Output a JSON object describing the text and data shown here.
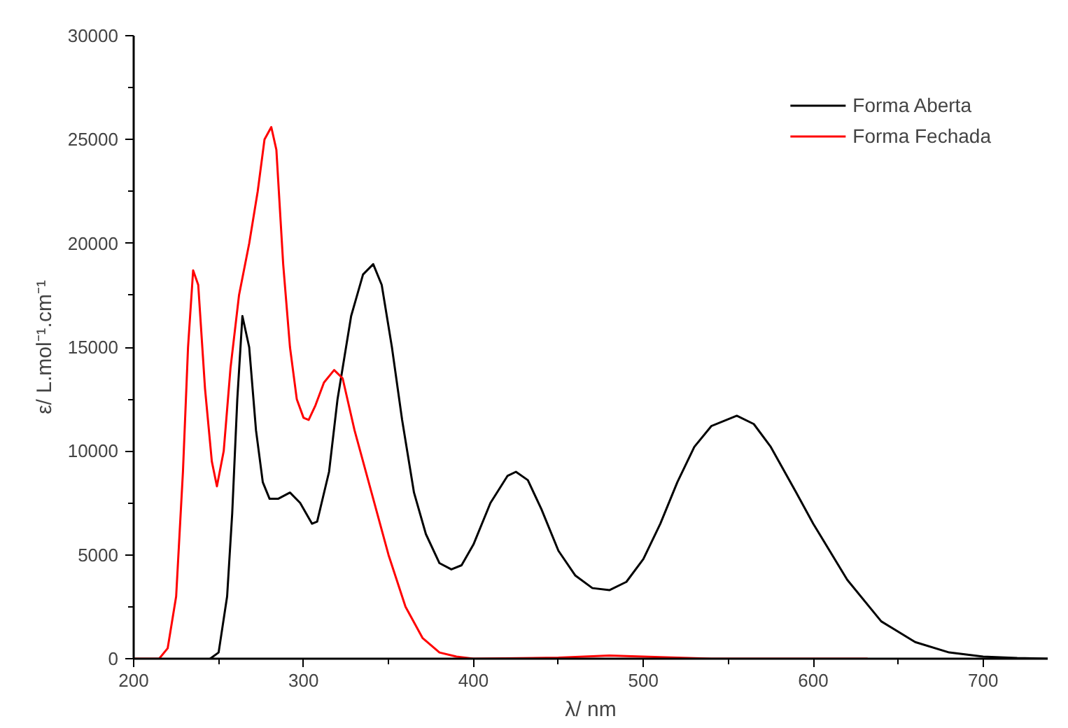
{
  "chart_data": {
    "type": "line",
    "xlabel": "λ/ nm",
    "ylabel": "ε/ L.mol⁻¹.cm⁻¹",
    "xlim": [
      200,
      738
    ],
    "ylim": [
      0,
      30000
    ],
    "xticks": [
      200,
      {
        "value": 250,
        "label": null
      },
      300,
      {
        "value": 350,
        "label": null
      },
      400,
      {
        "value": 450,
        "label": null
      },
      500,
      {
        "value": 550,
        "label": null
      },
      600,
      {
        "value": 650,
        "label": null
      },
      700
    ],
    "yticks": [
      0,
      {
        "value": 2500,
        "label": null
      },
      5000,
      {
        "value": 7500,
        "label": null
      },
      10000,
      {
        "value": 12500,
        "label": null
      },
      15000,
      {
        "value": 17500,
        "label": null
      },
      20000,
      {
        "value": 22500,
        "label": null
      },
      25000,
      {
        "value": 27500,
        "label": null
      },
      30000
    ],
    "grid": false,
    "legend": "top right",
    "line_style": "solid",
    "series": [
      {
        "name": "Forma Aberta",
        "color": "#000000",
        "x": [
          245,
          250,
          255,
          258,
          261,
          264,
          268,
          272,
          276,
          280,
          285,
          292,
          298,
          305,
          308,
          315,
          320,
          328,
          335,
          341,
          346,
          352,
          358,
          365,
          372,
          380,
          387,
          393,
          400,
          410,
          420,
          425,
          432,
          440,
          450,
          460,
          470,
          480,
          490,
          500,
          510,
          520,
          530,
          540,
          555,
          565,
          575,
          590,
          600,
          620,
          640,
          660,
          680,
          700,
          720,
          738
        ],
        "values": [
          0,
          300,
          3000,
          7000,
          12500,
          16500,
          15000,
          11000,
          8500,
          7700,
          7700,
          8000,
          7500,
          6500,
          6600,
          9000,
          12500,
          16500,
          18500,
          19000,
          18000,
          15000,
          11500,
          8000,
          6000,
          4600,
          4300,
          4500,
          5500,
          7500,
          8800,
          9000,
          8600,
          7200,
          5200,
          4000,
          3400,
          3300,
          3700,
          4800,
          6500,
          8500,
          10200,
          11200,
          11700,
          11300,
          10200,
          8000,
          6500,
          3800,
          1800,
          800,
          300,
          100,
          30,
          0
        ]
      },
      {
        "name": "Forma Fechada",
        "color": "#ff0000",
        "x": [
          200,
          215,
          220,
          225,
          229,
          232,
          235,
          238,
          242,
          246,
          249,
          253,
          257,
          262,
          268,
          273,
          277,
          281,
          284,
          288,
          292,
          296,
          300,
          303,
          307,
          312,
          318,
          323,
          330,
          340,
          350,
          360,
          370,
          380,
          390,
          400,
          450,
          480,
          520,
          540,
          632
        ],
        "values": [
          0,
          0,
          500,
          3000,
          9000,
          15000,
          18700,
          18000,
          13000,
          9500,
          8300,
          10000,
          14000,
          17500,
          20000,
          22500,
          25000,
          25600,
          24500,
          19000,
          15000,
          12500,
          11600,
          11500,
          12200,
          13300,
          13900,
          13500,
          11000,
          8000,
          5000,
          2500,
          1000,
          300,
          100,
          0,
          50,
          150,
          50,
          0,
          0
        ]
      }
    ]
  }
}
